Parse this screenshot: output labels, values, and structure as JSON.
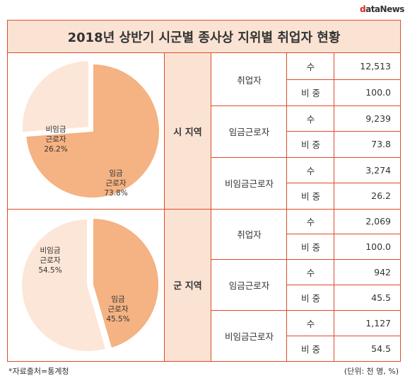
{
  "logo": {
    "first": "d",
    "rest": "ataNews"
  },
  "title": "2018년 상반기 시군별 종사상 지위별 취업자 현황",
  "colors": {
    "border": "#e04a2a",
    "header_fill": "#fbe3d4",
    "wage": "#f5b282",
    "nonwage": "#fce6d7"
  },
  "regions": [
    {
      "name": "시 지역",
      "rows": [
        {
          "category": "취업자",
          "items": [
            {
              "label": "수",
              "value": "12,513"
            },
            {
              "label": "비 중",
              "value": "100.0"
            }
          ]
        },
        {
          "category": "임금근로자",
          "items": [
            {
              "label": "수",
              "value": "9,239"
            },
            {
              "label": "비 중",
              "value": "73.8"
            }
          ]
        },
        {
          "category": "비임금근로자",
          "items": [
            {
              "label": "수",
              "value": "3,274"
            },
            {
              "label": "비 중",
              "value": "26.2"
            }
          ]
        }
      ]
    },
    {
      "name": "군 지역",
      "rows": [
        {
          "category": "취업자",
          "items": [
            {
              "label": "수",
              "value": "2,069"
            },
            {
              "label": "비 중",
              "value": "100.0"
            }
          ]
        },
        {
          "category": "임금근로자",
          "items": [
            {
              "label": "수",
              "value": "942"
            },
            {
              "label": "비 중",
              "value": "45.5"
            }
          ]
        },
        {
          "category": "비임금근로자",
          "items": [
            {
              "label": "수",
              "value": "1,127"
            },
            {
              "label": "비 중",
              "value": "54.5"
            }
          ]
        }
      ]
    }
  ],
  "chart_data": [
    {
      "type": "pie",
      "region": "시 지역",
      "slices": [
        {
          "name": "임금 근로자",
          "value": 73.8,
          "label": "임금\n근로자\n73.8%",
          "color": "#f5b282"
        },
        {
          "name": "비임금 근로자",
          "value": 26.2,
          "label": "비임금\n근로자\n26.2%",
          "color": "#fce6d7"
        }
      ]
    },
    {
      "type": "pie",
      "region": "군 지역",
      "slices": [
        {
          "name": "임금 근로자",
          "value": 45.5,
          "label": "임금\n근로자\n45.5%",
          "color": "#f5b282"
        },
        {
          "name": "비임금 근로자",
          "value": 54.5,
          "label": "비임금\n근로자\n54.5%",
          "color": "#fce6d7"
        }
      ]
    }
  ],
  "footer": {
    "source": "*자료출처=통계청",
    "unit": "(단위: 천 명, %)"
  }
}
